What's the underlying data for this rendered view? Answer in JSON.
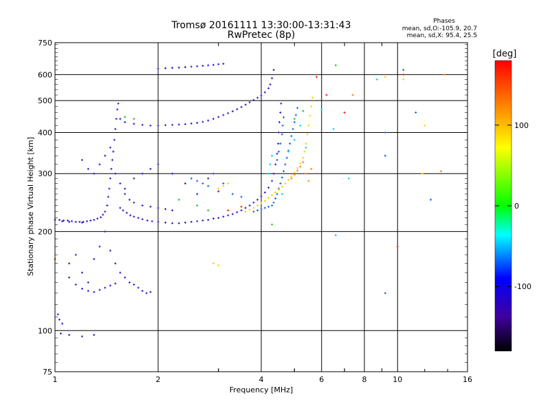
{
  "chart_data": {
    "type": "scatter",
    "title": "Tromsø 20161111 13:30:00-13:31:43",
    "subtitle": "RwPretec (8p)",
    "xlabel": "Frequency [MHz]",
    "ylabel": "Stationary phase Virtual Height [km]",
    "x_scale": "log",
    "y_scale": "log",
    "xlim": [
      1,
      16
    ],
    "ylim": [
      75,
      750
    ],
    "x_ticks": [
      1,
      2,
      4,
      6,
      8,
      10,
      16
    ],
    "x_minor_ticks": [
      3,
      5,
      7,
      9
    ],
    "y_ticks": [
      75,
      100,
      200,
      300,
      400,
      500,
      600,
      750
    ],
    "grid": true,
    "phases_box": {
      "heading": "Phases",
      "line_o": "mean, sd,O:-105.9, 20.7",
      "line_x": "mean, sd,X: 95.4, 25.5"
    },
    "colorbar": {
      "label": "[deg]",
      "range": [
        -180,
        180
      ],
      "ticks": [
        100,
        0,
        -100
      ],
      "colors": [
        "#ff0000",
        "#ff8000",
        "#ffff00",
        "#00ff00",
        "#00ffff",
        "#0000ff",
        "#4000a0",
        "#000000"
      ]
    },
    "series": [
      {
        "color": "#3818c8",
        "points": [
          [
            1.0,
            217
          ],
          [
            1.03,
            217
          ],
          [
            1.06,
            216
          ],
          [
            1.09,
            216
          ],
          [
            1.12,
            215
          ],
          [
            1.15,
            214
          ],
          [
            1.18,
            214
          ],
          [
            1.21,
            214
          ],
          [
            1.24,
            215
          ],
          [
            1.27,
            216
          ],
          [
            1.3,
            217
          ],
          [
            1.33,
            219
          ],
          [
            1.36,
            221
          ],
          [
            1.38,
            225
          ],
          [
            1.4,
            230
          ],
          [
            1.42,
            240
          ],
          [
            1.43,
            255
          ],
          [
            1.44,
            270
          ],
          [
            1.45,
            290
          ],
          [
            1.46,
            310
          ],
          [
            1.47,
            330
          ],
          [
            1.48,
            350
          ],
          [
            1.49,
            380
          ],
          [
            1.5,
            410
          ],
          [
            1.51,
            440
          ],
          [
            1.52,
            470
          ],
          [
            1.53,
            490
          ],
          [
            1.55,
            236
          ],
          [
            1.58,
            232
          ],
          [
            1.62,
            228
          ],
          [
            1.66,
            224
          ],
          [
            1.7,
            222
          ],
          [
            1.75,
            220
          ],
          [
            1.8,
            218
          ],
          [
            1.86,
            216
          ],
          [
            1.92,
            215
          ],
          [
            2.0,
            214
          ],
          [
            2.1,
            213
          ],
          [
            2.2,
            212
          ],
          [
            2.3,
            212
          ],
          [
            2.4,
            213
          ],
          [
            2.5,
            214
          ],
          [
            2.6,
            215
          ],
          [
            2.7,
            216
          ],
          [
            2.8,
            217
          ],
          [
            2.9,
            219
          ],
          [
            3.0,
            220
          ],
          [
            3.1,
            222
          ],
          [
            3.2,
            224
          ],
          [
            3.3,
            226
          ],
          [
            3.4,
            229
          ],
          [
            3.5,
            232
          ],
          [
            3.6,
            236
          ],
          [
            3.7,
            240
          ],
          [
            3.8,
            245
          ],
          [
            3.9,
            250
          ],
          [
            4.0,
            256
          ],
          [
            4.1,
            263
          ],
          [
            4.2,
            272
          ],
          [
            4.3,
            285
          ],
          [
            4.35,
            300
          ],
          [
            4.4,
            320
          ],
          [
            4.45,
            345
          ],
          [
            4.48,
            370
          ],
          [
            4.5,
            400
          ],
          [
            4.52,
            430
          ],
          [
            4.55,
            460
          ],
          [
            4.57,
            490
          ],
          [
            1.55,
            440
          ],
          [
            1.6,
            430
          ],
          [
            1.7,
            425
          ],
          [
            1.8,
            422
          ],
          [
            1.9,
            420
          ],
          [
            2.0,
            420
          ],
          [
            2.1,
            421
          ],
          [
            2.2,
            422
          ],
          [
            2.3,
            423
          ],
          [
            2.4,
            424
          ],
          [
            2.5,
            426
          ],
          [
            2.6,
            428
          ],
          [
            2.7,
            431
          ],
          [
            2.8,
            435
          ],
          [
            2.9,
            440
          ],
          [
            3.0,
            446
          ],
          [
            3.1,
            452
          ],
          [
            3.2,
            458
          ],
          [
            3.3,
            464
          ],
          [
            3.4,
            471
          ],
          [
            3.5,
            478
          ],
          [
            3.6,
            486
          ],
          [
            3.7,
            494
          ],
          [
            3.8,
            502
          ],
          [
            3.9,
            510
          ],
          [
            4.0,
            518
          ],
          [
            4.1,
            530
          ],
          [
            4.2,
            545
          ],
          [
            4.25,
            560
          ],
          [
            4.3,
            585
          ],
          [
            4.35,
            620
          ],
          [
            2.0,
            625
          ],
          [
            2.1,
            627
          ],
          [
            2.2,
            629
          ],
          [
            2.3,
            630
          ],
          [
            2.4,
            632
          ],
          [
            2.5,
            634
          ],
          [
            2.6,
            636
          ],
          [
            2.7,
            638
          ],
          [
            2.8,
            640
          ],
          [
            2.9,
            642
          ],
          [
            3.0,
            645
          ],
          [
            3.1,
            647
          ],
          [
            1.05,
            215
          ],
          [
            1.1,
            214
          ],
          [
            1.2,
            213
          ],
          [
            1.1,
            160
          ],
          [
            1.15,
            170
          ],
          [
            1.2,
            150
          ],
          [
            1.25,
            140
          ],
          [
            1.3,
            165
          ],
          [
            1.35,
            180
          ],
          [
            1.4,
            200
          ],
          [
            1.45,
            175
          ],
          [
            1.5,
            160
          ],
          [
            1.55,
            150
          ],
          [
            1.6,
            145
          ],
          [
            1.65,
            140
          ],
          [
            1.7,
            138
          ],
          [
            1.75,
            135
          ],
          [
            1.8,
            132
          ],
          [
            1.85,
            130
          ],
          [
            1.9,
            131
          ],
          [
            1.1,
            145
          ],
          [
            1.15,
            138
          ],
          [
            1.2,
            134
          ],
          [
            1.25,
            132
          ],
          [
            1.3,
            131
          ],
          [
            1.35,
            133
          ],
          [
            1.4,
            135
          ],
          [
            1.45,
            137
          ],
          [
            1.5,
            139
          ],
          [
            1.03,
            108
          ],
          [
            1.05,
            105
          ],
          [
            1.04,
            98
          ],
          [
            1.1,
            97
          ],
          [
            1.2,
            96
          ],
          [
            1.3,
            97
          ],
          [
            1.02,
            112
          ],
          [
            1.6,
            270
          ],
          [
            1.7,
            290
          ],
          [
            1.8,
            300
          ],
          [
            1.9,
            310
          ],
          [
            2.0,
            320
          ],
          [
            2.2,
            300
          ],
          [
            2.4,
            280
          ],
          [
            2.6,
            260
          ],
          [
            2.8,
            290
          ],
          [
            3.0,
            265
          ],
          [
            1.2,
            330
          ],
          [
            1.25,
            310
          ],
          [
            1.3,
            300
          ],
          [
            1.35,
            320
          ],
          [
            1.4,
            340
          ],
          [
            1.45,
            360
          ],
          [
            1.5,
            300
          ],
          [
            1.55,
            280
          ],
          [
            1.6,
            260
          ],
          [
            1.65,
            250
          ],
          [
            1.7,
            245
          ],
          [
            1.8,
            240
          ],
          [
            1.9,
            238
          ],
          [
            2.0,
            236
          ],
          [
            2.1,
            234
          ],
          [
            2.2,
            232
          ]
        ]
      },
      {
        "color": "#1060f0",
        "points": [
          [
            4.3,
            240
          ],
          [
            4.35,
            245
          ],
          [
            4.4,
            252
          ],
          [
            4.45,
            260
          ],
          [
            4.5,
            270
          ],
          [
            4.55,
            280
          ],
          [
            4.6,
            292
          ],
          [
            4.65,
            305
          ],
          [
            4.7,
            320
          ],
          [
            4.75,
            335
          ],
          [
            4.8,
            352
          ],
          [
            4.85,
            370
          ],
          [
            4.9,
            390
          ],
          [
            4.95,
            410
          ],
          [
            5.0,
            430
          ],
          [
            5.05,
            452
          ],
          [
            5.1,
            475
          ],
          [
            3.8,
            230
          ],
          [
            3.9,
            232
          ],
          [
            4.0,
            234
          ],
          [
            4.1,
            236
          ],
          [
            4.2,
            238
          ],
          [
            4.45,
            330
          ],
          [
            4.5,
            350
          ],
          [
            4.55,
            370
          ],
          [
            4.6,
            395
          ],
          [
            4.62,
            420
          ],
          [
            4.65,
            445
          ],
          [
            2.5,
            290
          ],
          [
            2.6,
            285
          ],
          [
            2.7,
            280
          ],
          [
            2.8,
            275
          ],
          [
            2.9,
            300
          ],
          [
            3.1,
            280
          ],
          [
            3.3,
            260
          ],
          [
            3.5,
            255
          ],
          [
            9.2,
            400
          ],
          [
            9.2,
            130
          ],
          [
            10.4,
            620
          ],
          [
            11.3,
            460
          ],
          [
            12.5,
            250
          ],
          [
            9.2,
            340
          ]
        ]
      },
      {
        "color": "#ffd000",
        "points": [
          [
            3.6,
            230
          ],
          [
            3.7,
            233
          ],
          [
            3.8,
            236
          ],
          [
            3.9,
            240
          ],
          [
            4.0,
            244
          ],
          [
            4.1,
            248
          ],
          [
            4.2,
            253
          ],
          [
            4.3,
            258
          ],
          [
            4.4,
            263
          ],
          [
            4.5,
            268
          ],
          [
            4.6,
            274
          ],
          [
            4.7,
            280
          ],
          [
            4.8,
            287
          ],
          [
            4.9,
            294
          ],
          [
            5.0,
            302
          ],
          [
            5.1,
            312
          ],
          [
            5.2,
            322
          ],
          [
            5.3,
            335
          ],
          [
            5.35,
            350
          ],
          [
            5.4,
            370
          ],
          [
            5.45,
            395
          ],
          [
            5.5,
            420
          ],
          [
            5.55,
            450
          ],
          [
            5.6,
            480
          ],
          [
            5.65,
            510
          ],
          [
            3.0,
            270
          ],
          [
            3.1,
            275
          ],
          [
            3.2,
            280
          ],
          [
            2.9,
            160
          ],
          [
            3.0,
            158
          ],
          [
            10.4,
            580
          ],
          [
            11.8,
            300
          ],
          [
            12.0,
            420
          ],
          [
            9.2,
            590
          ]
        ]
      },
      {
        "color": "#ff8000",
        "points": [
          [
            4.9,
            290
          ],
          [
            5.0,
            298
          ],
          [
            5.1,
            306
          ],
          [
            5.2,
            315
          ],
          [
            5.3,
            325
          ],
          [
            5.4,
            300
          ],
          [
            5.5,
            285
          ],
          [
            5.6,
            310
          ],
          [
            7.4,
            520
          ],
          [
            13.7,
            600
          ],
          [
            13.4,
            305
          ],
          [
            1.0,
            165
          ]
        ]
      },
      {
        "color": "#00d0f0",
        "points": [
          [
            4.2,
            300
          ],
          [
            4.25,
            320
          ],
          [
            4.3,
            340
          ],
          [
            4.6,
            260
          ],
          [
            4.8,
            350
          ],
          [
            5.0,
            380
          ],
          [
            5.2,
            420
          ],
          [
            5.4,
            360
          ],
          [
            6.6,
            195
          ],
          [
            6.0,
            470
          ],
          [
            6.5,
            410
          ],
          [
            7.2,
            290
          ],
          [
            8.7,
            580
          ]
        ]
      },
      {
        "color": "#20c020",
        "points": [
          [
            2.3,
            250
          ],
          [
            2.6,
            240
          ],
          [
            2.8,
            232
          ],
          [
            4.3,
            210
          ],
          [
            5.0,
            440
          ],
          [
            5.3,
            465
          ],
          [
            6.6,
            640
          ],
          [
            1.6,
            446
          ],
          [
            1.7,
            440
          ]
        ]
      },
      {
        "color": "#ff2000",
        "points": [
          [
            3.2,
            232
          ],
          [
            3.5,
            238
          ],
          [
            5.8,
            590
          ],
          [
            6.2,
            520
          ],
          [
            7.0,
            460
          ],
          [
            10.0,
            180
          ],
          [
            10.4,
            600
          ],
          [
            1.0,
            165
          ]
        ]
      }
    ]
  }
}
